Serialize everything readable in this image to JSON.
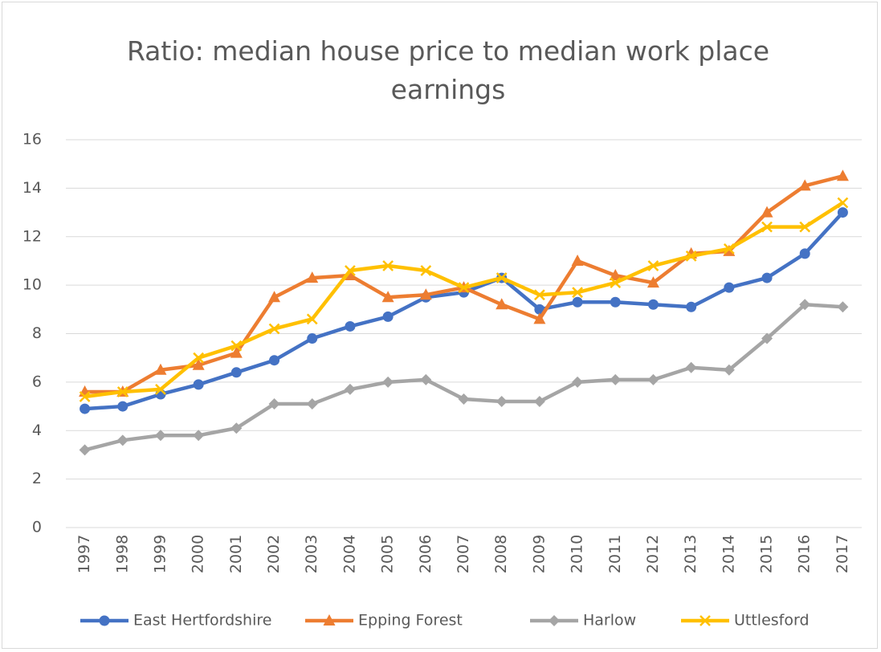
{
  "chart_data": {
    "type": "line",
    "title": "Ratio: median house price to median work place earnings",
    "categories": [
      "1997",
      "1998",
      "1999",
      "2000",
      "2001",
      "2002",
      "2003",
      "2004",
      "2005",
      "2006",
      "2007",
      "2008",
      "2009",
      "2010",
      "2011",
      "2012",
      "2013",
      "2014",
      "2015",
      "2016",
      "2017"
    ],
    "series": [
      {
        "name": "East Hertfordshire",
        "color": "#4472c4",
        "marker": "circle",
        "values": [
          4.9,
          5.0,
          5.5,
          5.9,
          6.4,
          6.9,
          7.8,
          8.3,
          8.7,
          9.5,
          9.7,
          10.3,
          9.0,
          9.3,
          9.3,
          9.2,
          9.1,
          9.9,
          10.3,
          11.3,
          13.0
        ]
      },
      {
        "name": "Epping Forest",
        "color": "#ed7d31",
        "marker": "triangle",
        "values": [
          5.6,
          5.6,
          6.5,
          6.7,
          7.2,
          9.5,
          10.3,
          10.4,
          9.5,
          9.6,
          9.9,
          9.2,
          8.6,
          11.0,
          10.4,
          10.1,
          11.3,
          11.4,
          13.0,
          14.1,
          14.5
        ]
      },
      {
        "name": "Harlow",
        "color": "#a5a5a5",
        "marker": "diamond",
        "values": [
          3.2,
          3.6,
          3.8,
          3.8,
          4.1,
          5.1,
          5.1,
          5.7,
          6.0,
          6.1,
          5.3,
          5.2,
          5.2,
          6.0,
          6.1,
          6.1,
          6.6,
          6.5,
          7.8,
          9.2,
          9.1
        ]
      },
      {
        "name": "Uttlesford",
        "color": "#ffc000",
        "marker": "x",
        "values": [
          5.4,
          5.6,
          5.7,
          7.0,
          7.5,
          8.2,
          8.6,
          10.6,
          10.8,
          10.6,
          9.9,
          10.3,
          9.6,
          9.7,
          10.1,
          10.8,
          11.2,
          11.5,
          12.4,
          12.4,
          13.4
        ]
      }
    ],
    "ylim": [
      0,
      16
    ],
    "yticks": [
      0,
      2,
      4,
      6,
      8,
      10,
      12,
      14,
      16
    ],
    "grid": true,
    "legend": "bottom"
  }
}
